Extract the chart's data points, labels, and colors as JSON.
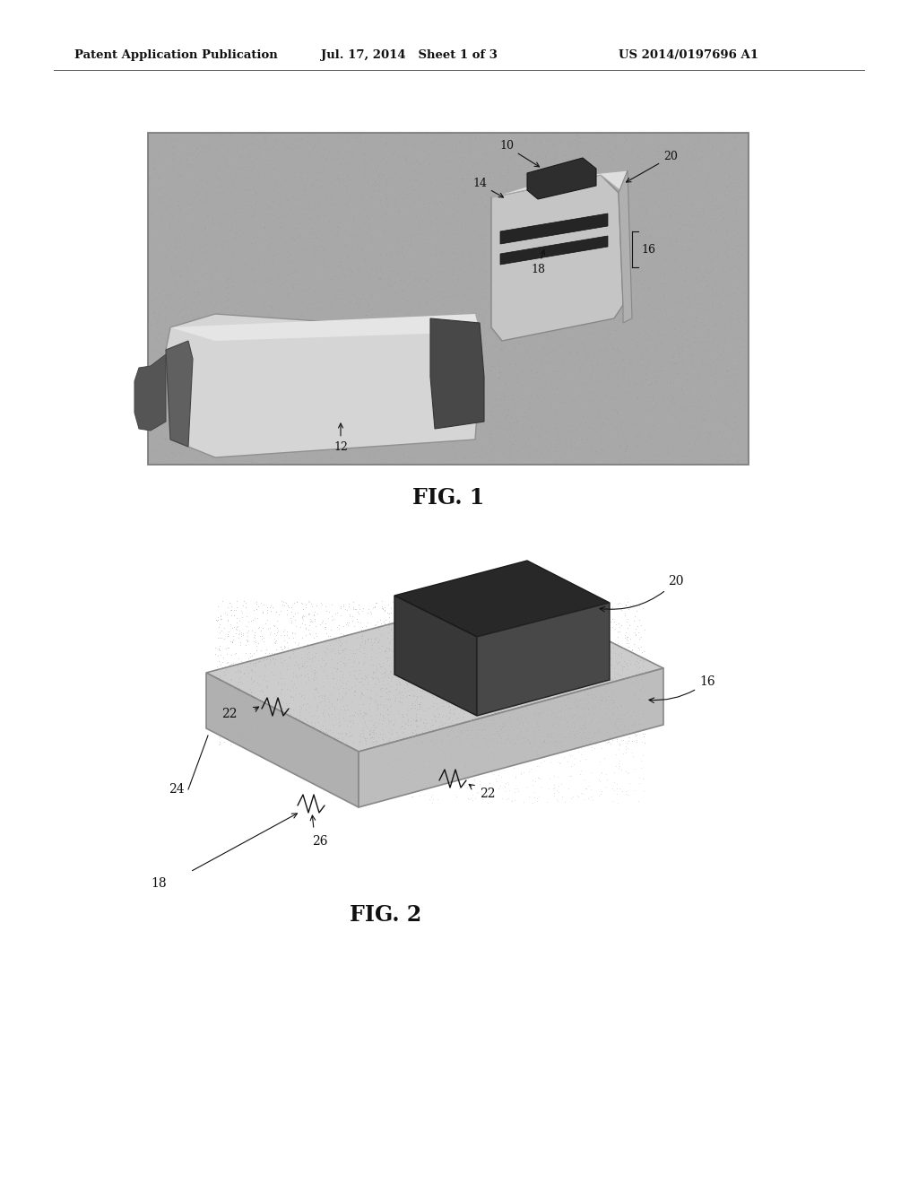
{
  "background_color": "#ffffff",
  "header_left": "Patent Application Publication",
  "header_center": "Jul. 17, 2014   Sheet 1 of 3",
  "header_right": "US 2014/0197696 A1",
  "fig1_label": "FIG. 1",
  "fig2_label": "FIG. 2",
  "annotation_color": "#111111",
  "fig1_bg": "#b0b0b0",
  "fig2_plate_top": "#c8c8c8",
  "fig2_plate_side": "#a8a8a8",
  "fig2_plate_front": "#b8b8b8",
  "fig2_cube_top": "#2a2a2a",
  "fig2_cube_front": "#3a3a3a",
  "fig2_cube_right": "#444444"
}
